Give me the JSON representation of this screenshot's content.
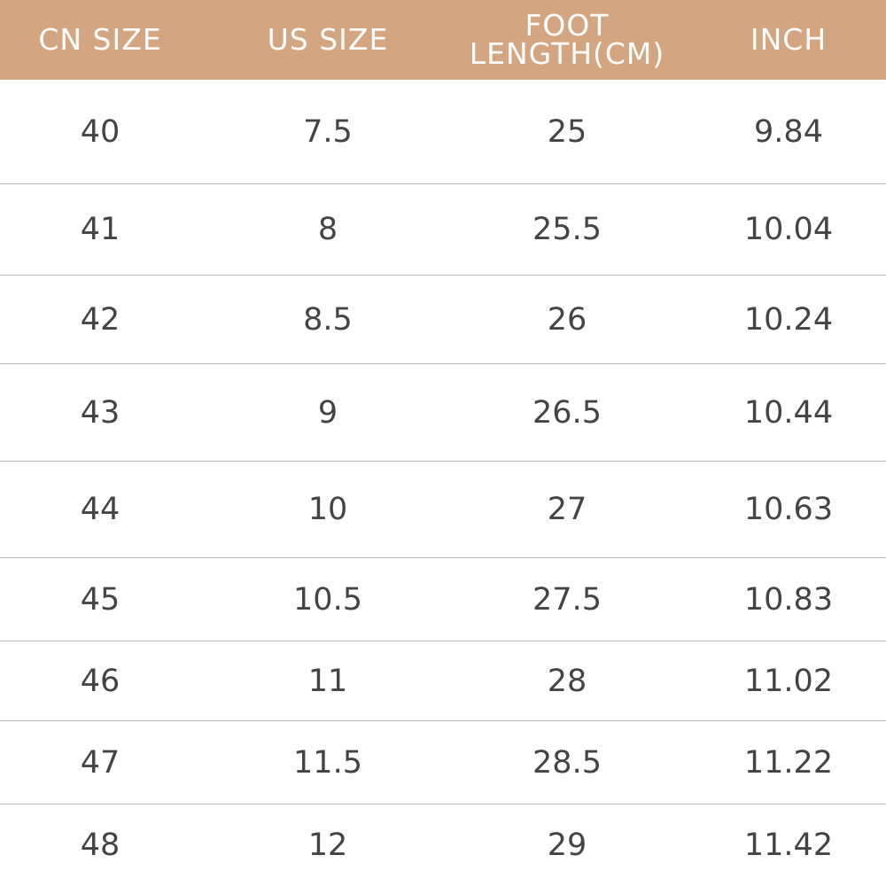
{
  "table": {
    "header": [
      "CN SIZE",
      "US SIZE",
      "FOOT LENGTH(CM)",
      "INCH"
    ],
    "rows": [
      [
        "40",
        "7.5",
        "25",
        "9.84"
      ],
      [
        "41",
        "8",
        "25.5",
        "10.04"
      ],
      [
        "42",
        "8.5",
        "26",
        "10.24"
      ],
      [
        "43",
        "9",
        "26.5",
        "10.44"
      ],
      [
        "44",
        "10",
        "27",
        "10.63"
      ],
      [
        "45",
        "10.5",
        "27.5",
        "10.83"
      ],
      [
        "46",
        "11",
        "28",
        "11.02"
      ],
      [
        "47",
        "11.5",
        "28.5",
        "11.22"
      ],
      [
        "48",
        "12",
        "29",
        "11.42"
      ]
    ]
  }
}
